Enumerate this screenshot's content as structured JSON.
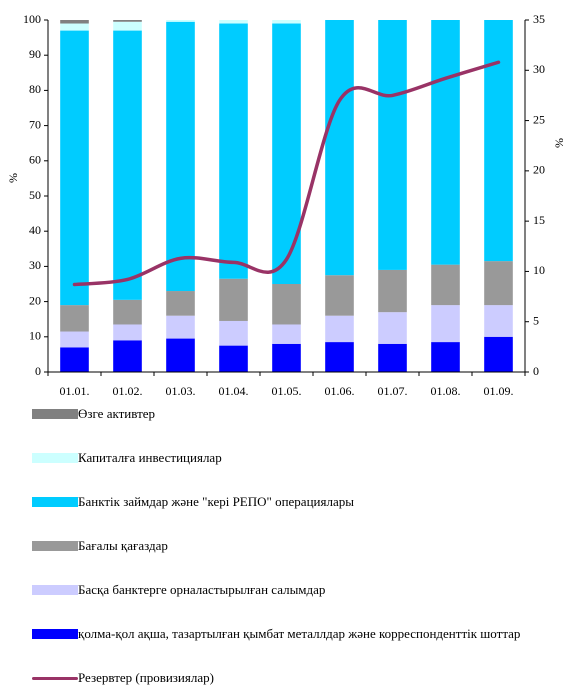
{
  "chart_data": {
    "type": "bar",
    "categories": [
      "01.01.",
      "01.02.",
      "01.03.",
      "01.04.",
      "01.05.",
      "01.06.",
      "01.07.",
      "01.08.",
      "01.09."
    ],
    "series": [
      {
        "name": "қолма-қол ақша, тазартылған қымбат металлдар және корреспонденттік шоттар",
        "color": "#0000ff",
        "values": [
          7,
          9,
          9.5,
          7.5,
          8,
          8.5,
          8,
          8.5,
          10
        ]
      },
      {
        "name": "Басқа банктерге орналастырылған салымдар",
        "color": "#ccccff",
        "values": [
          4.5,
          4.5,
          6.5,
          7,
          5.5,
          7.5,
          9,
          10.5,
          9
        ]
      },
      {
        "name": "Бағалы қағаздар",
        "color": "#999999",
        "values": [
          7.5,
          7,
          7,
          12,
          11.5,
          11.5,
          12,
          11.5,
          12.5
        ]
      },
      {
        "name": "Банктік займдар және \"кері РЕПО\" операциялары",
        "color": "#00ccff",
        "values": [
          78,
          76.5,
          76.5,
          72.5,
          74,
          72.5,
          71,
          69.5,
          68.5
        ]
      },
      {
        "name": "Капиталға инвестициялар",
        "color": "#ccffff",
        "values": [
          2,
          2.5,
          1.5,
          2,
          2,
          0,
          0,
          0,
          0
        ]
      },
      {
        "name": "Өзге активтер",
        "color": "#808080",
        "values": [
          1,
          0.5,
          0,
          0,
          0,
          0,
          0,
          0,
          0
        ]
      },
      {
        "name": "Резервтер (провизиялар)",
        "color": "#993366",
        "type": "line",
        "axis": "y2",
        "values": [
          8.7,
          9.2,
          11.3,
          10.9,
          11.2,
          27,
          27.5,
          29.2,
          30.8
        ]
      }
    ],
    "y_label": "%",
    "y2_label": "%",
    "ylim": [
      0,
      100
    ],
    "yticks": [
      0,
      10,
      20,
      30,
      40,
      50,
      60,
      70,
      80,
      90,
      100
    ],
    "y2lim": [
      0,
      35
    ],
    "y2ticks": [
      0,
      5,
      10,
      15,
      20,
      25,
      30,
      35
    ],
    "stacked": true,
    "grid": false
  }
}
